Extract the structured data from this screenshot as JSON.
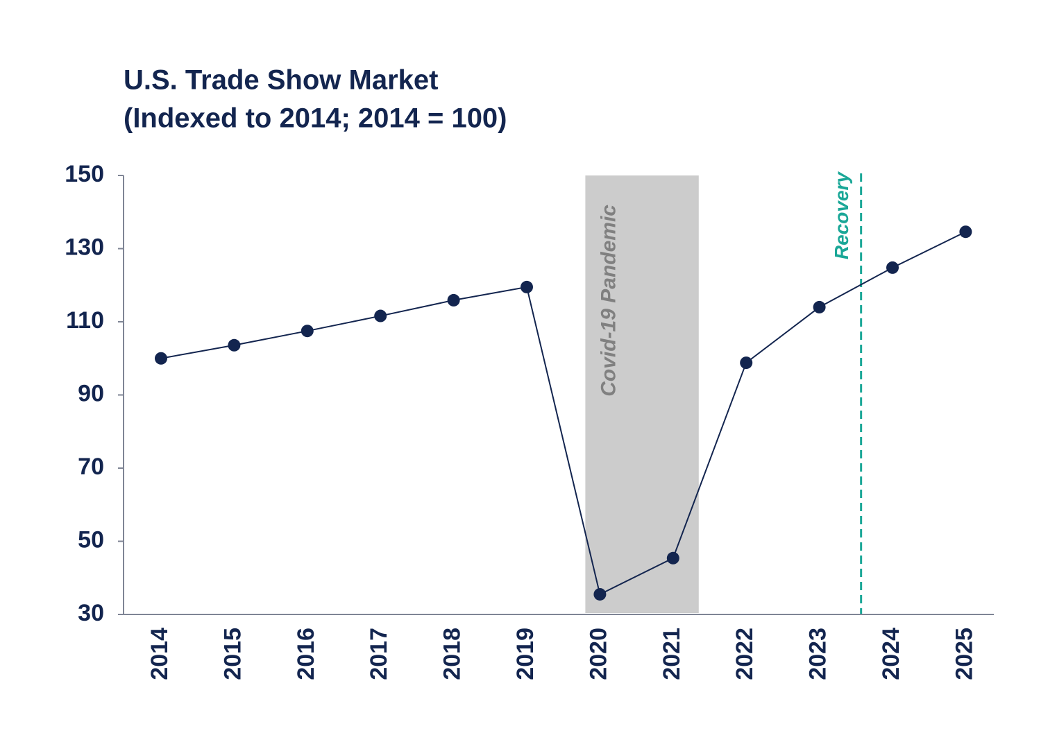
{
  "chart_data": {
    "type": "line",
    "title": "U.S. Trade Show Market",
    "subtitle": "(Indexed to 2014; 2014 = 100)",
    "categories": [
      "2014",
      "2015",
      "2016",
      "2017",
      "2018",
      "2019",
      "2020",
      "2021",
      "2022",
      "2023",
      "2024",
      "2025"
    ],
    "series": [
      {
        "color": "#13254f",
        "values": [
          100,
          103.6,
          107.5,
          111.6,
          115.9,
          119.5,
          35.5,
          45.4,
          98.8,
          114,
          124.8,
          134.6
        ]
      }
    ],
    "ylim": [
      30,
      150
    ],
    "yticks": [
      30,
      50,
      70,
      90,
      110,
      130,
      150
    ],
    "annotations": [
      {
        "text": "Covid-19 Pandemic",
        "color": "#808080",
        "shade": "#cccccc"
      },
      {
        "text": "Recovery",
        "color": "#1aa797"
      }
    ]
  }
}
